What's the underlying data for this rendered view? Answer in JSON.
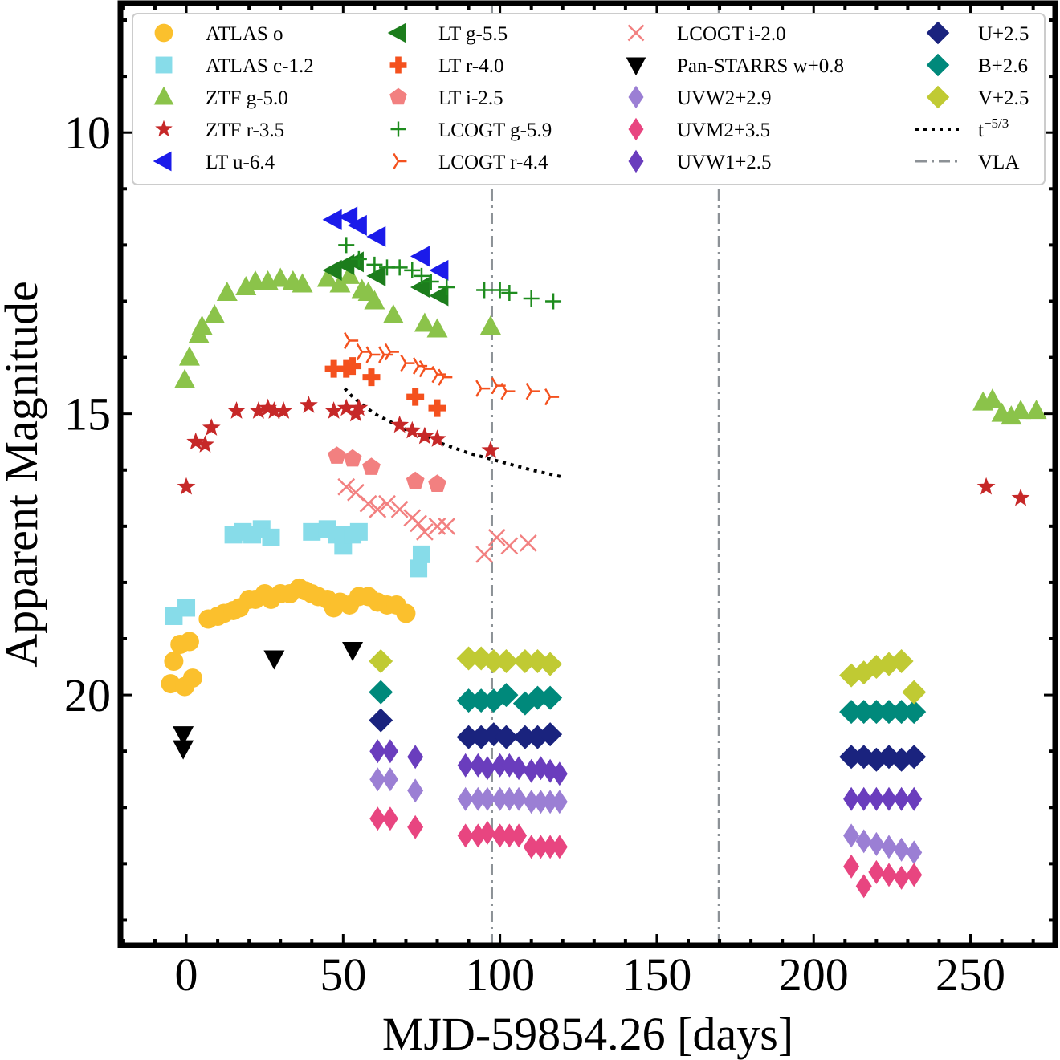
{
  "chart_data": {
    "type": "scatter",
    "xlabel": "MJD-59854.26 [days]",
    "ylabel": "Apparent Magnitude",
    "xlim": [
      -21,
      277
    ],
    "ylim": [
      24.45,
      7.7
    ],
    "y_inverted": true,
    "xticks": [
      0,
      50,
      100,
      150,
      200,
      250
    ],
    "xtick_labels": [
      "0",
      "50",
      "100",
      "150",
      "200",
      "250"
    ],
    "yticks": [
      10,
      15,
      20
    ],
    "ytick_labels": [
      "10",
      "15",
      "20"
    ],
    "grid": false,
    "legend_position": "top",
    "vlines": [
      {
        "x": 97.4,
        "color": "#8c9196"
      },
      {
        "x": 169.8,
        "color": "#8c9196"
      }
    ],
    "fit_line": {
      "label": "t",
      "label_sup": "−5/3",
      "color": "#000000",
      "style": "dotted",
      "points": [
        [
          50.5,
          14.55
        ],
        [
          53,
          14.7
        ],
        [
          60,
          15.0
        ],
        [
          70,
          15.28
        ],
        [
          80,
          15.5
        ],
        [
          90,
          15.7
        ],
        [
          100,
          15.85
        ],
        [
          110,
          16.0
        ],
        [
          119.7,
          16.12
        ]
      ]
    },
    "series": [
      {
        "name": "ATLAS o",
        "marker": "circle",
        "color": "#fbc02d",
        "points": [
          [
            -5,
            19.8
          ],
          [
            -4,
            19.4
          ],
          [
            -2,
            19.1
          ],
          [
            -0.5,
            19.85
          ],
          [
            1,
            19.05
          ],
          [
            2,
            19.7
          ],
          [
            7,
            18.65
          ],
          [
            10,
            18.6
          ],
          [
            12,
            18.55
          ],
          [
            15,
            18.5
          ],
          [
            17,
            18.45
          ],
          [
            20,
            18.3
          ],
          [
            22,
            18.3
          ],
          [
            25,
            18.2
          ],
          [
            27,
            18.3
          ],
          [
            30,
            18.2
          ],
          [
            33,
            18.2
          ],
          [
            36,
            18.1
          ],
          [
            38,
            18.15
          ],
          [
            40,
            18.2
          ],
          [
            42,
            18.25
          ],
          [
            45,
            18.3
          ],
          [
            47,
            18.45
          ],
          [
            49,
            18.35
          ],
          [
            52,
            18.4
          ],
          [
            55,
            18.25
          ],
          [
            58,
            18.25
          ],
          [
            61,
            18.35
          ],
          [
            64,
            18.4
          ],
          [
            67,
            18.4
          ],
          [
            70,
            18.55
          ]
        ]
      },
      {
        "name": "ATLAS c-1.2",
        "marker": "square",
        "color": "#87dce9",
        "points": [
          [
            -4,
            18.6
          ],
          [
            0,
            18.45
          ],
          [
            15,
            17.15
          ],
          [
            18,
            17.1
          ],
          [
            21,
            17.15
          ],
          [
            24,
            17.05
          ],
          [
            27,
            17.2
          ],
          [
            40,
            17.1
          ],
          [
            45,
            17.05
          ],
          [
            48,
            17.15
          ],
          [
            50,
            17.35
          ],
          [
            53,
            17.15
          ],
          [
            55,
            17.1
          ],
          [
            74,
            17.75
          ],
          [
            75,
            17.5
          ]
        ]
      },
      {
        "name": "ZTF g-5.0",
        "marker": "triangle-up",
        "color": "#8bc34a",
        "points": [
          [
            -0.5,
            14.4
          ],
          [
            1,
            14.0
          ],
          [
            4,
            13.6
          ],
          [
            5,
            13.45
          ],
          [
            9,
            13.25
          ],
          [
            13,
            12.85
          ],
          [
            19,
            12.75
          ],
          [
            22,
            12.65
          ],
          [
            26,
            12.65
          ],
          [
            30,
            12.6
          ],
          [
            34,
            12.65
          ],
          [
            37,
            12.7
          ],
          [
            45,
            12.6
          ],
          [
            49,
            12.7
          ],
          [
            52,
            12.55
          ],
          [
            56,
            12.8
          ],
          [
            58,
            12.85
          ],
          [
            60,
            13.0
          ],
          [
            66,
            13.25
          ],
          [
            76,
            13.4
          ],
          [
            80,
            13.5
          ],
          [
            97,
            13.45
          ],
          [
            254,
            14.8
          ],
          [
            257,
            14.75
          ],
          [
            260,
            15.0
          ],
          [
            263,
            15.05
          ],
          [
            266,
            14.95
          ],
          [
            271,
            14.95
          ]
        ]
      },
      {
        "name": "ZTF r-3.5",
        "marker": "star",
        "color": "#c62828",
        "points": [
          [
            0,
            16.3
          ],
          [
            3,
            15.5
          ],
          [
            6,
            15.55
          ],
          [
            8,
            15.25
          ],
          [
            16,
            14.95
          ],
          [
            23,
            14.95
          ],
          [
            26,
            14.9
          ],
          [
            28,
            14.95
          ],
          [
            31,
            14.95
          ],
          [
            39,
            14.85
          ],
          [
            47,
            14.95
          ],
          [
            51,
            14.9
          ],
          [
            54,
            15.0
          ],
          [
            55,
            14.9
          ],
          [
            68,
            15.2
          ],
          [
            72,
            15.3
          ],
          [
            76,
            15.4
          ],
          [
            80,
            15.45
          ],
          [
            97,
            15.65
          ],
          [
            255,
            16.3
          ],
          [
            266,
            16.5
          ]
        ]
      },
      {
        "name": "LT u-6.4",
        "marker": "triangle-left",
        "color": "#1b1bea",
        "points": [
          [
            47,
            11.55
          ],
          [
            52,
            11.5
          ],
          [
            55,
            11.65
          ],
          [
            61,
            11.85
          ],
          [
            75,
            12.2
          ],
          [
            81,
            12.45
          ]
        ]
      },
      {
        "name": "LT g-5.5",
        "marker": "triangle-left",
        "color": "#1c7d1c",
        "points": [
          [
            47,
            12.45
          ],
          [
            51,
            12.35
          ],
          [
            54,
            12.3
          ],
          [
            61,
            12.55
          ],
          [
            75,
            12.75
          ],
          [
            81,
            12.9
          ]
        ]
      },
      {
        "name": "LT r-4.0",
        "marker": "plus",
        "color": "#f4511e",
        "points": [
          [
            47,
            14.2
          ],
          [
            51,
            14.2
          ],
          [
            53,
            14.15
          ],
          [
            59,
            14.35
          ],
          [
            73,
            14.7
          ],
          [
            80,
            14.9
          ]
        ]
      },
      {
        "name": "LT i-2.5",
        "marker": "pentagon",
        "color": "#f28080",
        "points": [
          [
            48,
            15.75
          ],
          [
            53,
            15.8
          ],
          [
            59,
            15.95
          ],
          [
            73,
            16.2
          ],
          [
            80,
            16.25
          ]
        ]
      },
      {
        "name": "LCOGT g-5.9",
        "marker": "cross-plus",
        "color": "#1e8c1e",
        "points": [
          [
            51,
            12.0
          ],
          [
            55,
            12.25
          ],
          [
            60,
            12.35
          ],
          [
            64,
            12.4
          ],
          [
            68,
            12.4
          ],
          [
            72,
            12.45
          ],
          [
            75,
            12.55
          ],
          [
            78,
            12.65
          ],
          [
            83,
            12.75
          ],
          [
            95,
            12.8
          ],
          [
            100,
            12.8
          ],
          [
            103,
            12.85
          ],
          [
            110,
            12.95
          ],
          [
            117,
            13.0
          ]
        ]
      },
      {
        "name": "LCOGT r-4.4",
        "marker": "tri-right",
        "color": "#f4511e",
        "points": [
          [
            52,
            13.7
          ],
          [
            56,
            13.9
          ],
          [
            59,
            13.95
          ],
          [
            63,
            13.95
          ],
          [
            65,
            13.9
          ],
          [
            70,
            14.1
          ],
          [
            74,
            14.15
          ],
          [
            76,
            14.2
          ],
          [
            80,
            14.3
          ],
          [
            82,
            14.35
          ],
          [
            94,
            14.55
          ],
          [
            99,
            14.5
          ],
          [
            102,
            14.6
          ],
          [
            110,
            14.6
          ],
          [
            116,
            14.7
          ]
        ]
      },
      {
        "name": "LCOGT i-2.0",
        "marker": "x",
        "color": "#f28080",
        "points": [
          [
            51,
            16.3
          ],
          [
            54,
            16.4
          ],
          [
            58,
            16.6
          ],
          [
            61,
            16.7
          ],
          [
            64,
            16.6
          ],
          [
            68,
            16.7
          ],
          [
            72,
            16.85
          ],
          [
            74,
            16.95
          ],
          [
            76,
            17.1
          ],
          [
            80,
            17.0
          ],
          [
            83,
            17.0
          ],
          [
            95,
            17.5
          ],
          [
            99,
            17.2
          ],
          [
            103,
            17.35
          ],
          [
            109,
            17.3
          ]
        ]
      },
      {
        "name": "Pan-STARRS w+0.8",
        "marker": "triangle-down",
        "color": "#000000",
        "points": [
          [
            -1,
            20.7
          ],
          [
            -1,
            20.95
          ],
          [
            28,
            19.35
          ],
          [
            53,
            19.2
          ]
        ]
      },
      {
        "name": "UVW2+2.9",
        "marker": "diamond-thin",
        "color": "#9b7fd4",
        "points": [
          [
            61,
            21.5
          ],
          [
            65,
            21.5
          ],
          [
            73,
            21.7
          ],
          [
            89,
            21.85
          ],
          [
            93,
            21.85
          ],
          [
            96,
            21.85
          ],
          [
            100,
            21.85
          ],
          [
            103,
            21.85
          ],
          [
            106,
            21.85
          ],
          [
            110,
            21.9
          ],
          [
            113,
            21.9
          ],
          [
            116,
            21.9
          ],
          [
            119,
            21.9
          ],
          [
            212,
            22.5
          ],
          [
            216,
            22.6
          ],
          [
            220,
            22.65
          ],
          [
            224,
            22.7
          ],
          [
            228,
            22.75
          ],
          [
            232,
            22.8
          ]
        ]
      },
      {
        "name": "UVM2+3.5",
        "marker": "diamond-thin",
        "color": "#e84580",
        "points": [
          [
            61,
            22.2
          ],
          [
            65,
            22.2
          ],
          [
            73,
            22.35
          ],
          [
            89,
            22.5
          ],
          [
            93,
            22.5
          ],
          [
            96,
            22.45
          ],
          [
            100,
            22.5
          ],
          [
            103,
            22.5
          ],
          [
            106,
            22.5
          ],
          [
            110,
            22.7
          ],
          [
            113,
            22.7
          ],
          [
            116,
            22.7
          ],
          [
            119,
            22.7
          ],
          [
            212,
            23.05
          ],
          [
            216,
            23.4
          ],
          [
            220,
            23.15
          ],
          [
            224,
            23.2
          ],
          [
            228,
            23.25
          ],
          [
            232,
            23.2
          ]
        ]
      },
      {
        "name": "UVW1+2.5",
        "marker": "diamond-thin",
        "color": "#6a3dbd",
        "points": [
          [
            61,
            21.0
          ],
          [
            65,
            21.0
          ],
          [
            73,
            21.1
          ],
          [
            89,
            21.25
          ],
          [
            93,
            21.25
          ],
          [
            96,
            21.3
          ],
          [
            100,
            21.25
          ],
          [
            103,
            21.25
          ],
          [
            106,
            21.3
          ],
          [
            110,
            21.35
          ],
          [
            113,
            21.3
          ],
          [
            116,
            21.35
          ],
          [
            119,
            21.4
          ],
          [
            212,
            21.85
          ],
          [
            216,
            21.85
          ],
          [
            220,
            21.85
          ],
          [
            224,
            21.85
          ],
          [
            228,
            21.85
          ],
          [
            232,
            21.85
          ]
        ]
      },
      {
        "name": "U+2.5",
        "marker": "diamond",
        "color": "#1a237e",
        "points": [
          [
            62,
            20.45
          ],
          [
            90,
            20.75
          ],
          [
            94,
            20.75
          ],
          [
            98,
            20.7
          ],
          [
            102,
            20.75
          ],
          [
            108,
            20.75
          ],
          [
            112,
            20.75
          ],
          [
            116,
            20.7
          ],
          [
            212,
            21.1
          ],
          [
            216,
            21.1
          ],
          [
            220,
            21.15
          ],
          [
            224,
            21.1
          ],
          [
            228,
            21.15
          ],
          [
            232,
            21.1
          ]
        ]
      },
      {
        "name": "B+2.6",
        "marker": "diamond",
        "color": "#00897b",
        "points": [
          [
            62,
            19.95
          ],
          [
            90,
            20.1
          ],
          [
            94,
            20.1
          ],
          [
            98,
            20.1
          ],
          [
            102,
            20.0
          ],
          [
            108,
            20.15
          ],
          [
            112,
            20.05
          ],
          [
            116,
            20.05
          ],
          [
            212,
            20.3
          ],
          [
            216,
            20.3
          ],
          [
            220,
            20.3
          ],
          [
            224,
            20.3
          ],
          [
            228,
            20.3
          ],
          [
            232,
            20.3
          ]
        ]
      },
      {
        "name": "V+2.5",
        "marker": "diamond",
        "color": "#c0ca33",
        "points": [
          [
            62,
            19.4
          ],
          [
            90,
            19.35
          ],
          [
            94,
            19.35
          ],
          [
            98,
            19.4
          ],
          [
            102,
            19.4
          ],
          [
            108,
            19.4
          ],
          [
            112,
            19.4
          ],
          [
            116,
            19.45
          ],
          [
            212,
            19.65
          ],
          [
            216,
            19.6
          ],
          [
            220,
            19.5
          ],
          [
            224,
            19.45
          ],
          [
            228,
            19.4
          ],
          [
            232,
            19.95
          ]
        ]
      }
    ]
  }
}
